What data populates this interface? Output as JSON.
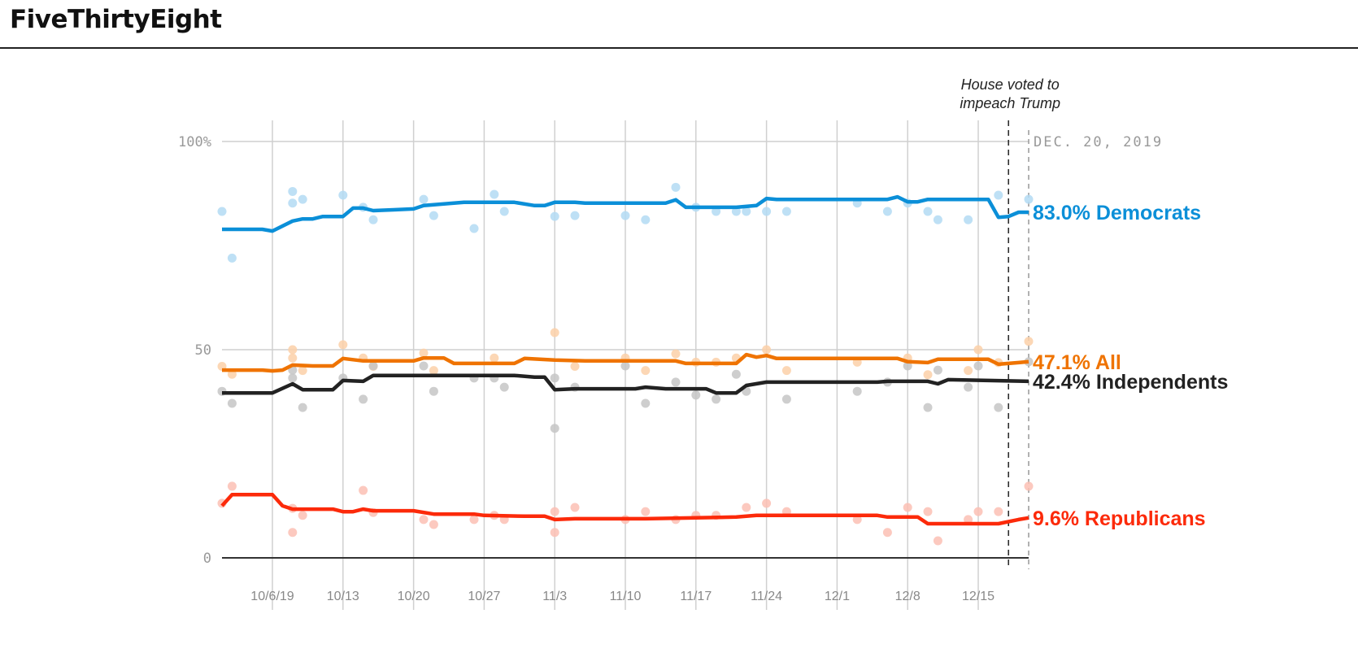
{
  "header": {
    "logo": "FiveThirtyEight"
  },
  "chart_data": {
    "type": "line",
    "title": "",
    "xlabel": "",
    "ylabel": "",
    "ylim": [
      0,
      100
    ],
    "y_ticks": [
      {
        "value": 100,
        "label": "100%"
      },
      {
        "value": 50,
        "label": "50"
      },
      {
        "value": 0,
        "label": "0"
      }
    ],
    "x_ticks": [
      {
        "date": "2019-10-06",
        "label": "10/6/19"
      },
      {
        "date": "2019-10-13",
        "label": "10/13"
      },
      {
        "date": "2019-10-20",
        "label": "10/20"
      },
      {
        "date": "2019-10-27",
        "label": "10/27"
      },
      {
        "date": "2019-11-03",
        "label": "11/3"
      },
      {
        "date": "2019-11-10",
        "label": "11/10"
      },
      {
        "date": "2019-11-17",
        "label": "11/17"
      },
      {
        "date": "2019-11-24",
        "label": "11/24"
      },
      {
        "date": "2019-12-01",
        "label": "12/1"
      },
      {
        "date": "2019-12-08",
        "label": "12/8"
      },
      {
        "date": "2019-12-15",
        "label": "12/15"
      }
    ],
    "xlim": [
      "2019-10-01",
      "2019-12-20"
    ],
    "grid": true,
    "annotations": [
      {
        "date": "2019-12-18",
        "line1": "House voted to",
        "line2": "impeach Trump"
      },
      {
        "date": "2019-12-20",
        "label": "DEC. 20, 2019"
      }
    ],
    "series": [
      {
        "name": "Democrats",
        "end_label": "83.0% Democrats",
        "color": "#0b8fd8",
        "dot_color": "#b3dbf3",
        "trend": [
          [
            "2019-10-01",
            78.9
          ],
          [
            "2019-10-05",
            78.9
          ],
          [
            "2019-10-06",
            78.5
          ],
          [
            "2019-10-08",
            80.9
          ],
          [
            "2019-10-09",
            81.4
          ],
          [
            "2019-10-10",
            81.4
          ],
          [
            "2019-10-11",
            82
          ],
          [
            "2019-10-13",
            82
          ],
          [
            "2019-10-14",
            84
          ],
          [
            "2019-10-15",
            84
          ],
          [
            "2019-10-16",
            83.4
          ],
          [
            "2019-10-18",
            83.6
          ],
          [
            "2019-10-20",
            83.8
          ],
          [
            "2019-10-21",
            84.6
          ],
          [
            "2019-10-23",
            85
          ],
          [
            "2019-10-25",
            85.4
          ],
          [
            "2019-10-30",
            85.4
          ],
          [
            "2019-11-01",
            84.6
          ],
          [
            "2019-11-02",
            84.6
          ],
          [
            "2019-11-03",
            85.4
          ],
          [
            "2019-11-05",
            85.4
          ],
          [
            "2019-11-06",
            85.2
          ],
          [
            "2019-11-14",
            85.2
          ],
          [
            "2019-11-15",
            86
          ],
          [
            "2019-11-16",
            84.2
          ],
          [
            "2019-11-21",
            84.2
          ],
          [
            "2019-11-23",
            84.6
          ],
          [
            "2019-11-24",
            86.3
          ],
          [
            "2019-11-25",
            86.1
          ],
          [
            "2019-12-06",
            86.1
          ],
          [
            "2019-12-07",
            86.7
          ],
          [
            "2019-12-08",
            85.5
          ],
          [
            "2019-12-09",
            85.5
          ],
          [
            "2019-12-10",
            86.1
          ],
          [
            "2019-12-16",
            86.1
          ],
          [
            "2019-12-17",
            81.8
          ],
          [
            "2019-12-18",
            82
          ],
          [
            "2019-12-19",
            83
          ],
          [
            "2019-12-20",
            83.0
          ]
        ],
        "polls": [
          [
            "2019-10-01",
            83.2
          ],
          [
            "2019-10-02",
            72
          ],
          [
            "2019-10-08",
            88
          ],
          [
            "2019-10-08",
            85.2
          ],
          [
            "2019-10-09",
            86.1
          ],
          [
            "2019-10-13",
            87.1
          ],
          [
            "2019-10-15",
            84.2
          ],
          [
            "2019-10-16",
            81.2
          ],
          [
            "2019-10-21",
            86.1
          ],
          [
            "2019-10-22",
            82.2
          ],
          [
            "2019-10-26",
            79.1
          ],
          [
            "2019-10-28",
            87.3
          ],
          [
            "2019-10-29",
            83.2
          ],
          [
            "2019-11-03",
            82
          ],
          [
            "2019-11-05",
            82.2
          ],
          [
            "2019-11-10",
            82.2
          ],
          [
            "2019-11-12",
            81.2
          ],
          [
            "2019-11-15",
            89
          ],
          [
            "2019-11-17",
            84.2
          ],
          [
            "2019-11-19",
            83.2
          ],
          [
            "2019-11-21",
            83.2
          ],
          [
            "2019-11-22",
            83.2
          ],
          [
            "2019-11-24",
            83.2
          ],
          [
            "2019-11-26",
            83.2
          ],
          [
            "2019-12-03",
            85.2
          ],
          [
            "2019-12-06",
            83.2
          ],
          [
            "2019-12-08",
            85.2
          ],
          [
            "2019-12-10",
            83.2
          ],
          [
            "2019-12-11",
            81.2
          ],
          [
            "2019-12-14",
            81.2
          ],
          [
            "2019-12-17",
            87.1
          ],
          [
            "2019-12-20",
            86.1
          ]
        ]
      },
      {
        "name": "All",
        "end_label": "47.1% All",
        "color": "#ef7300",
        "dot_color": "#fcd0a8",
        "trend": [
          [
            "2019-10-01",
            45.1
          ],
          [
            "2019-10-05",
            45.1
          ],
          [
            "2019-10-06",
            44.9
          ],
          [
            "2019-10-07",
            45.1
          ],
          [
            "2019-10-08",
            46.3
          ],
          [
            "2019-10-10",
            46.1
          ],
          [
            "2019-10-12",
            46.1
          ],
          [
            "2019-10-13",
            47.9
          ],
          [
            "2019-10-15",
            47.3
          ],
          [
            "2019-10-20",
            47.3
          ],
          [
            "2019-10-21",
            48
          ],
          [
            "2019-10-23",
            48
          ],
          [
            "2019-10-24",
            46.7
          ],
          [
            "2019-10-30",
            46.7
          ],
          [
            "2019-10-31",
            47.9
          ],
          [
            "2019-11-03",
            47.5
          ],
          [
            "2019-11-06",
            47.3
          ],
          [
            "2019-11-15",
            47.3
          ],
          [
            "2019-11-16",
            46.7
          ],
          [
            "2019-11-21",
            46.7
          ],
          [
            "2019-11-22",
            48.8
          ],
          [
            "2019-11-23",
            48.2
          ],
          [
            "2019-11-24",
            48.6
          ],
          [
            "2019-11-25",
            47.9
          ],
          [
            "2019-12-07",
            47.9
          ],
          [
            "2019-12-08",
            47.1
          ],
          [
            "2019-12-10",
            46.9
          ],
          [
            "2019-12-11",
            47.7
          ],
          [
            "2019-12-16",
            47.7
          ],
          [
            "2019-12-17",
            46.5
          ],
          [
            "2019-12-19",
            46.9
          ],
          [
            "2019-12-20",
            47.1
          ]
        ],
        "polls": [
          [
            "2019-10-01",
            46
          ],
          [
            "2019-10-02",
            44.1
          ],
          [
            "2019-10-08",
            50
          ],
          [
            "2019-10-08",
            48
          ],
          [
            "2019-10-09",
            45
          ],
          [
            "2019-10-13",
            51.2
          ],
          [
            "2019-10-15",
            48
          ],
          [
            "2019-10-16",
            46
          ],
          [
            "2019-10-21",
            49.2
          ],
          [
            "2019-10-22",
            45
          ],
          [
            "2019-10-28",
            48
          ],
          [
            "2019-11-03",
            54.1
          ],
          [
            "2019-11-05",
            46
          ],
          [
            "2019-11-10",
            48
          ],
          [
            "2019-11-12",
            45
          ],
          [
            "2019-11-15",
            49
          ],
          [
            "2019-11-17",
            47
          ],
          [
            "2019-11-19",
            47
          ],
          [
            "2019-11-21",
            48
          ],
          [
            "2019-11-24",
            50
          ],
          [
            "2019-11-26",
            45
          ],
          [
            "2019-12-03",
            47
          ],
          [
            "2019-12-08",
            48
          ],
          [
            "2019-12-10",
            44
          ],
          [
            "2019-12-14",
            45
          ],
          [
            "2019-12-15",
            50
          ],
          [
            "2019-12-17",
            46.9
          ],
          [
            "2019-12-20",
            52
          ]
        ]
      },
      {
        "name": "Independents",
        "end_label": "42.4% Independents",
        "color": "#222222",
        "dot_color": "#c6c6c6",
        "trend": [
          [
            "2019-10-01",
            39.6
          ],
          [
            "2019-10-06",
            39.6
          ],
          [
            "2019-10-08",
            41.8
          ],
          [
            "2019-10-09",
            40.4
          ],
          [
            "2019-10-12",
            40.4
          ],
          [
            "2019-10-13",
            42.6
          ],
          [
            "2019-10-15",
            42.4
          ],
          [
            "2019-10-16",
            43.8
          ],
          [
            "2019-10-30",
            43.8
          ],
          [
            "2019-11-01",
            43.4
          ],
          [
            "2019-11-02",
            43.4
          ],
          [
            "2019-11-03",
            40.4
          ],
          [
            "2019-11-05",
            40.6
          ],
          [
            "2019-11-11",
            40.6
          ],
          [
            "2019-11-12",
            41
          ],
          [
            "2019-11-14",
            40.6
          ],
          [
            "2019-11-18",
            40.6
          ],
          [
            "2019-11-19",
            39.6
          ],
          [
            "2019-11-21",
            39.6
          ],
          [
            "2019-11-22",
            41.4
          ],
          [
            "2019-11-24",
            42.2
          ],
          [
            "2019-12-05",
            42.2
          ],
          [
            "2019-12-06",
            42.4
          ],
          [
            "2019-12-10",
            42.4
          ],
          [
            "2019-12-11",
            41.8
          ],
          [
            "2019-12-12",
            42.8
          ],
          [
            "2019-12-20",
            42.4
          ]
        ],
        "polls": [
          [
            "2019-10-01",
            40
          ],
          [
            "2019-10-02",
            37.1
          ],
          [
            "2019-10-08",
            45.1
          ],
          [
            "2019-10-08",
            43.2
          ],
          [
            "2019-10-09",
            36.1
          ],
          [
            "2019-10-13",
            43.2
          ],
          [
            "2019-10-15",
            38.1
          ],
          [
            "2019-10-16",
            46.1
          ],
          [
            "2019-10-21",
            46.1
          ],
          [
            "2019-10-22",
            40
          ],
          [
            "2019-10-26",
            43.2
          ],
          [
            "2019-10-28",
            43.2
          ],
          [
            "2019-10-29",
            41
          ],
          [
            "2019-11-03",
            43.2
          ],
          [
            "2019-11-03",
            31.1
          ],
          [
            "2019-11-05",
            41
          ],
          [
            "2019-11-10",
            46.1
          ],
          [
            "2019-11-12",
            37.1
          ],
          [
            "2019-11-15",
            42.2
          ],
          [
            "2019-11-17",
            39.1
          ],
          [
            "2019-11-19",
            38.1
          ],
          [
            "2019-11-21",
            44.1
          ],
          [
            "2019-11-22",
            40
          ],
          [
            "2019-11-26",
            38.1
          ],
          [
            "2019-12-03",
            40
          ],
          [
            "2019-12-06",
            42.2
          ],
          [
            "2019-12-08",
            46.1
          ],
          [
            "2019-12-10",
            36.1
          ],
          [
            "2019-12-11",
            45.1
          ],
          [
            "2019-12-14",
            41
          ],
          [
            "2019-12-15",
            46.1
          ],
          [
            "2019-12-17",
            36.1
          ],
          [
            "2019-12-20",
            47.1
          ]
        ]
      },
      {
        "name": "Republicans",
        "end_label": "9.6% Republicans",
        "color": "#fc2a0a",
        "dot_color": "#fcbfb4",
        "trend": [
          [
            "2019-10-01",
            12.5
          ],
          [
            "2019-10-02",
            15.2
          ],
          [
            "2019-10-06",
            15.2
          ],
          [
            "2019-10-07",
            12.5
          ],
          [
            "2019-10-08",
            11.7
          ],
          [
            "2019-10-12",
            11.7
          ],
          [
            "2019-10-13",
            11.1
          ],
          [
            "2019-10-14",
            11.1
          ],
          [
            "2019-10-15",
            11.7
          ],
          [
            "2019-10-16",
            11.3
          ],
          [
            "2019-10-20",
            11.3
          ],
          [
            "2019-10-22",
            10.5
          ],
          [
            "2019-10-26",
            10.5
          ],
          [
            "2019-10-27",
            10.2
          ],
          [
            "2019-10-31",
            10
          ],
          [
            "2019-11-02",
            10
          ],
          [
            "2019-11-03",
            9.2
          ],
          [
            "2019-11-05",
            9.4
          ],
          [
            "2019-11-12",
            9.4
          ],
          [
            "2019-11-17",
            9.6
          ],
          [
            "2019-11-21",
            9.8
          ],
          [
            "2019-11-23",
            10.2
          ],
          [
            "2019-12-05",
            10.2
          ],
          [
            "2019-12-06",
            9.8
          ],
          [
            "2019-12-09",
            9.8
          ],
          [
            "2019-12-10",
            8.2
          ],
          [
            "2019-12-17",
            8.2
          ],
          [
            "2019-12-19",
            9.2
          ],
          [
            "2019-12-20",
            9.6
          ]
        ],
        "polls": [
          [
            "2019-10-01",
            13.1
          ],
          [
            "2019-10-02",
            17.2
          ],
          [
            "2019-10-08",
            6.1
          ],
          [
            "2019-10-08",
            11.9
          ],
          [
            "2019-10-09",
            10.2
          ],
          [
            "2019-10-15",
            16.2
          ],
          [
            "2019-10-16",
            10.9
          ],
          [
            "2019-10-21",
            9.2
          ],
          [
            "2019-10-22",
            8
          ],
          [
            "2019-10-26",
            9.2
          ],
          [
            "2019-10-28",
            10.2
          ],
          [
            "2019-10-29",
            9.2
          ],
          [
            "2019-11-03",
            6.1
          ],
          [
            "2019-11-03",
            11.1
          ],
          [
            "2019-11-05",
            12.1
          ],
          [
            "2019-11-10",
            9.2
          ],
          [
            "2019-11-12",
            11.1
          ],
          [
            "2019-11-15",
            9.2
          ],
          [
            "2019-11-17",
            10.2
          ],
          [
            "2019-11-19",
            10.2
          ],
          [
            "2019-11-22",
            12.1
          ],
          [
            "2019-11-24",
            13.1
          ],
          [
            "2019-11-26",
            11.1
          ],
          [
            "2019-12-03",
            9.2
          ],
          [
            "2019-12-06",
            6.1
          ],
          [
            "2019-12-08",
            12.1
          ],
          [
            "2019-12-10",
            11.1
          ],
          [
            "2019-12-11",
            4.1
          ],
          [
            "2019-12-14",
            9.2
          ],
          [
            "2019-12-15",
            11.1
          ],
          [
            "2019-12-17",
            11.1
          ],
          [
            "2019-12-20",
            17.2
          ]
        ]
      }
    ]
  }
}
